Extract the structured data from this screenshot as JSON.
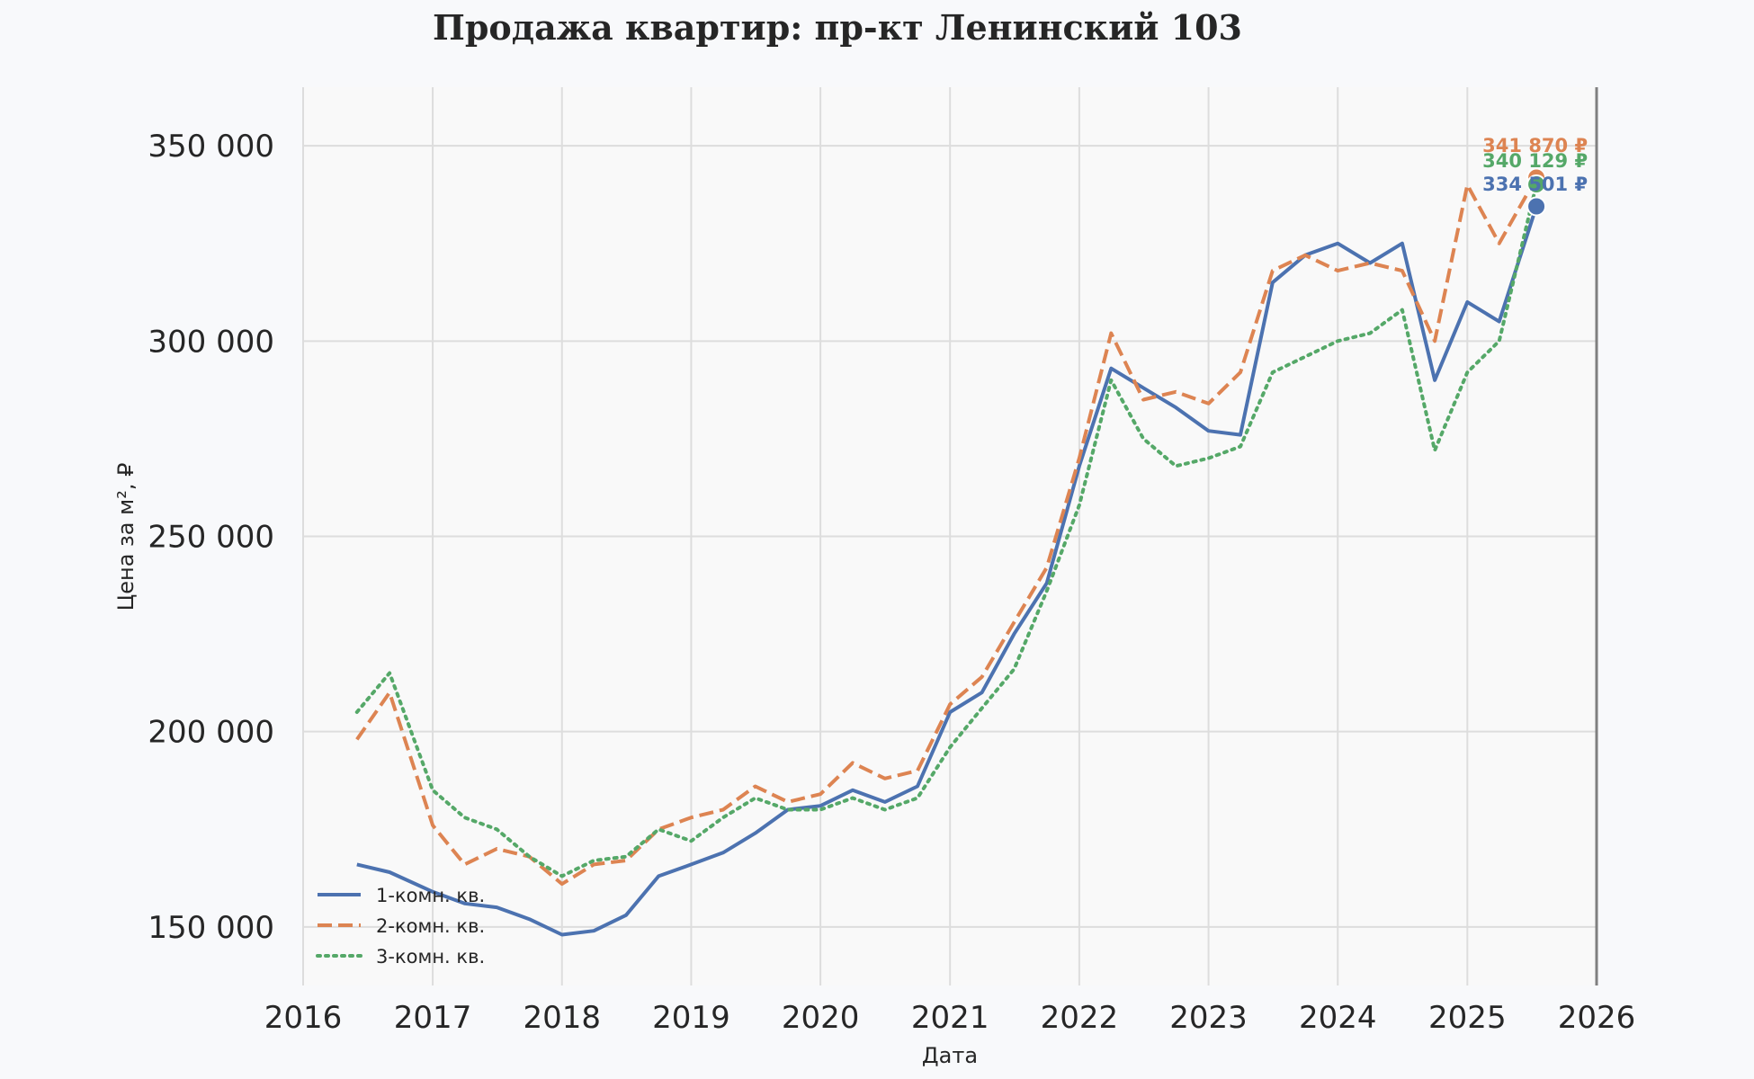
{
  "chart_data": {
    "type": "line",
    "title": "Продажа квартир: пр-кт Ленинский 103",
    "xlabel": "Дата",
    "ylabel": "Цена за м², ₽",
    "x_range": [
      "2016-01-01",
      "2026-01-01"
    ],
    "x_ticks": [
      "2016",
      "2017",
      "2018",
      "2019",
      "2020",
      "2021",
      "2022",
      "2023",
      "2024",
      "2025",
      "2026"
    ],
    "ylim": [
      135000,
      365000
    ],
    "y_ticks": [
      150000,
      200000,
      250000,
      300000,
      350000
    ],
    "y_tick_labels": [
      "150 000",
      "200 000",
      "250 000",
      "300 000",
      "350 000"
    ],
    "grid": true,
    "legend_position": "lower-left",
    "series": [
      {
        "name": "1-комн. кв.",
        "color": "#4c72b0",
        "line_style": "solid",
        "x": [
          "2016-06-01",
          "2016-09-01",
          "2017-01-01",
          "2017-04-01",
          "2017-07-01",
          "2017-10-01",
          "2018-01-01",
          "2018-04-01",
          "2018-07-01",
          "2018-10-01",
          "2019-01-01",
          "2019-04-01",
          "2019-07-01",
          "2019-10-01",
          "2020-01-01",
          "2020-04-01",
          "2020-07-01",
          "2020-10-01",
          "2021-01-01",
          "2021-04-01",
          "2021-07-01",
          "2021-10-01",
          "2022-01-01",
          "2022-04-01",
          "2022-07-01",
          "2022-10-01",
          "2023-01-01",
          "2023-04-01",
          "2023-07-01",
          "2023-10-01",
          "2024-01-01",
          "2024-04-01",
          "2024-07-01",
          "2024-10-01",
          "2025-01-01",
          "2025-04-01",
          "2025-07-15"
        ],
        "values": [
          166000,
          164000,
          159000,
          156000,
          155000,
          152000,
          148000,
          149000,
          153000,
          163000,
          166000,
          169000,
          174000,
          180000,
          181000,
          185000,
          182000,
          186000,
          205000,
          210000,
          225000,
          238000,
          268000,
          293000,
          288000,
          283000,
          277000,
          276000,
          315000,
          322000,
          325000,
          320000,
          325000,
          290000,
          310000,
          305000,
          334501
        ]
      },
      {
        "name": "2-комн. кв.",
        "color": "#dd8452",
        "line_style": "dashed",
        "x": [
          "2016-06-01",
          "2016-09-01",
          "2017-01-01",
          "2017-04-01",
          "2017-07-01",
          "2017-10-01",
          "2018-01-01",
          "2018-04-01",
          "2018-07-01",
          "2018-10-01",
          "2019-01-01",
          "2019-04-01",
          "2019-07-01",
          "2019-10-01",
          "2020-01-01",
          "2020-04-01",
          "2020-07-01",
          "2020-10-01",
          "2021-01-01",
          "2021-04-01",
          "2021-07-01",
          "2021-10-01",
          "2022-01-01",
          "2022-04-01",
          "2022-07-01",
          "2022-10-01",
          "2023-01-01",
          "2023-04-01",
          "2023-07-01",
          "2023-10-01",
          "2024-01-01",
          "2024-04-01",
          "2024-07-01",
          "2024-10-01",
          "2025-01-01",
          "2025-04-01",
          "2025-07-15"
        ],
        "values": [
          198000,
          210000,
          176000,
          166000,
          170000,
          168000,
          161000,
          166000,
          167000,
          175000,
          178000,
          180000,
          186000,
          182000,
          184000,
          192000,
          188000,
          190000,
          207000,
          214000,
          228000,
          242000,
          270000,
          302000,
          285000,
          287000,
          284000,
          292000,
          318000,
          322000,
          318000,
          320000,
          318000,
          300000,
          340000,
          325000,
          341870
        ]
      },
      {
        "name": "3-комн. кв.",
        "color": "#55a868",
        "line_style": "dotted",
        "x": [
          "2016-06-01",
          "2016-09-01",
          "2017-01-01",
          "2017-04-01",
          "2017-07-01",
          "2017-10-01",
          "2018-01-01",
          "2018-04-01",
          "2018-07-01",
          "2018-10-01",
          "2019-01-01",
          "2019-04-01",
          "2019-07-01",
          "2019-10-01",
          "2020-01-01",
          "2020-04-01",
          "2020-07-01",
          "2020-10-01",
          "2021-01-01",
          "2021-04-01",
          "2021-07-01",
          "2021-10-01",
          "2022-01-01",
          "2022-04-01",
          "2022-07-01",
          "2022-10-01",
          "2023-01-01",
          "2023-04-01",
          "2023-07-01",
          "2023-10-01",
          "2024-01-01",
          "2024-04-01",
          "2024-07-01",
          "2024-10-01",
          "2025-01-01",
          "2025-04-01",
          "2025-07-15"
        ],
        "values": [
          205000,
          215000,
          185000,
          178000,
          175000,
          168000,
          163000,
          167000,
          168000,
          175000,
          172000,
          178000,
          183000,
          180000,
          180000,
          183000,
          180000,
          183000,
          196000,
          206000,
          216000,
          236000,
          258000,
          290000,
          275000,
          268000,
          270000,
          273000,
          292000,
          296000,
          300000,
          302000,
          308000,
          272000,
          292000,
          300000,
          340129
        ]
      }
    ],
    "end_labels": [
      "341 870 ₽",
      "340 129 ₽",
      "334 501 ₽"
    ]
  }
}
